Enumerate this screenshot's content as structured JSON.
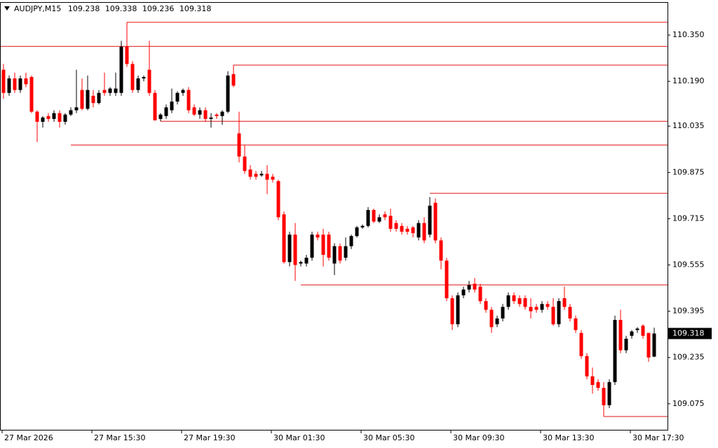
{
  "chart_data": {
    "type": "candlestick",
    "symbol": "AUDJPY,M15",
    "last_ohlc": [
      109.238,
      109.338,
      109.236,
      109.318
    ],
    "bull_color": "#000000",
    "bear_color": "#ff0000",
    "level_color": "#e01010",
    "ylim": [
      108.985,
      110.464
    ],
    "yticks": [
      {
        "value": 110.35,
        "label": "110.350"
      },
      {
        "value": 110.19,
        "label": "110.190"
      },
      110.035,
      109.875,
      109.715,
      109.555,
      109.395,
      109.235,
      109.075
    ],
    "xlabels": [
      {
        "index": 0,
        "label": "27 Mar 2026"
      },
      {
        "index": 16,
        "label": "27 Mar 15:30"
      },
      {
        "index": 32,
        "label": "27 Mar 19:30"
      },
      {
        "index": 48,
        "label": "30 Mar 01:30"
      },
      {
        "index": 64,
        "label": "30 Mar 05:30"
      },
      {
        "index": 80,
        "label": "30 Mar 09:30"
      },
      {
        "index": 96,
        "label": "30 Mar 13:30"
      },
      {
        "index": 112,
        "label": "30 Mar 17:30"
      }
    ],
    "levels": [
      {
        "value": 110.394,
        "from": 22
      },
      {
        "value": 110.311,
        "from": 0
      },
      {
        "value": 110.246,
        "from": 41
      },
      {
        "value": 110.052,
        "from": 28
      },
      {
        "value": 109.97,
        "from": 12
      },
      {
        "value": 109.803,
        "from": 76
      },
      {
        "value": 109.486,
        "from": 53
      },
      {
        "value": 109.031,
        "from": 107
      }
    ],
    "candles": [
      [
        110.23,
        110.25,
        110.13,
        110.15
      ],
      [
        110.15,
        110.21,
        110.14,
        110.2
      ],
      [
        110.2,
        110.22,
        110.15,
        110.16
      ],
      [
        110.16,
        110.21,
        110.15,
        110.2
      ],
      [
        110.2,
        110.22,
        110.17,
        110.18
      ],
      [
        110.205,
        110.21,
        110.08,
        110.085
      ],
      [
        110.085,
        110.09,
        109.98,
        110.05
      ],
      [
        110.05,
        110.07,
        110.03,
        110.065
      ],
      [
        110.07,
        110.08,
        110.05,
        110.06
      ],
      [
        110.06,
        110.09,
        110.05,
        110.08
      ],
      [
        110.08,
        110.09,
        110.03,
        110.05
      ],
      [
        110.05,
        110.08,
        110.04,
        110.075
      ],
      [
        110.075,
        110.1,
        110.07,
        110.09
      ],
      [
        110.09,
        110.23,
        110.08,
        110.1
      ],
      [
        110.16,
        110.2,
        110.09,
        110.095
      ],
      [
        110.095,
        110.21,
        110.09,
        110.16
      ],
      [
        110.14,
        110.16,
        110.1,
        110.115
      ],
      [
        110.115,
        110.16,
        110.11,
        110.15
      ],
      [
        110.16,
        110.22,
        110.14,
        110.15
      ],
      [
        110.15,
        110.17,
        110.14,
        110.165
      ],
      [
        110.15,
        110.22,
        110.14,
        110.165
      ],
      [
        110.15,
        110.33,
        110.14,
        110.31
      ],
      [
        110.31,
        110.394,
        110.24,
        110.25
      ],
      [
        110.25,
        110.26,
        110.15,
        110.16
      ],
      [
        110.16,
        110.21,
        110.15,
        110.2
      ],
      [
        110.2,
        110.21,
        110.19,
        110.205
      ],
      [
        110.23,
        110.33,
        110.14,
        110.15
      ],
      [
        110.15,
        110.16,
        110.055,
        110.055
      ],
      [
        110.06,
        110.08,
        110.052,
        110.075
      ],
      [
        110.07,
        110.11,
        110.06,
        110.1
      ],
      [
        110.09,
        110.165,
        110.08,
        110.12
      ],
      [
        110.12,
        110.155,
        110.11,
        110.15
      ],
      [
        110.15,
        110.165,
        110.14,
        110.16
      ],
      [
        110.16,
        110.17,
        110.08,
        110.09
      ],
      [
        110.1,
        110.11,
        110.07,
        110.075
      ],
      [
        110.075,
        110.1,
        110.06,
        110.09
      ],
      [
        110.09,
        110.1,
        110.05,
        110.06
      ],
      [
        110.06,
        110.08,
        110.03,
        110.065
      ],
      [
        110.075,
        110.08,
        110.06,
        110.07
      ],
      [
        110.07,
        110.09,
        110.04,
        110.085
      ],
      [
        110.085,
        110.225,
        110.08,
        110.21
      ],
      [
        110.215,
        110.246,
        110.17,
        110.175
      ],
      [
        110.01,
        110.085,
        109.91,
        109.93
      ],
      [
        109.93,
        109.97,
        109.87,
        109.88
      ],
      [
        109.885,
        109.9,
        109.85,
        109.86
      ],
      [
        109.87,
        109.88,
        109.85,
        109.86
      ],
      [
        109.865,
        109.88,
        109.86,
        109.87
      ],
      [
        109.87,
        109.9,
        109.8,
        109.85
      ],
      [
        109.86,
        109.87,
        109.84,
        109.85
      ],
      [
        109.845,
        109.85,
        109.71,
        109.72
      ],
      [
        109.73,
        109.74,
        109.56,
        109.565
      ],
      [
        109.565,
        109.67,
        109.55,
        109.66
      ],
      [
        109.66,
        109.7,
        109.5,
        109.555
      ],
      [
        109.56,
        109.57,
        109.55,
        109.565
      ],
      [
        109.56,
        109.59,
        109.55,
        109.58
      ],
      [
        109.58,
        109.67,
        109.57,
        109.66
      ],
      [
        109.66,
        109.67,
        109.64,
        109.65
      ],
      [
        109.66,
        109.68,
        109.55,
        109.59
      ],
      [
        109.66,
        109.67,
        109.57,
        109.58
      ],
      [
        109.56,
        109.63,
        109.52,
        109.62
      ],
      [
        109.62,
        109.63,
        109.56,
        109.57
      ],
      [
        109.58,
        109.65,
        109.57,
        109.62
      ],
      [
        109.62,
        109.66,
        109.61,
        109.655
      ],
      [
        109.655,
        109.69,
        109.65,
        109.685
      ],
      [
        109.685,
        109.695,
        109.68,
        109.69
      ],
      [
        109.69,
        109.755,
        109.685,
        109.745
      ],
      [
        109.745,
        109.75,
        109.7,
        109.705
      ],
      [
        109.705,
        109.73,
        109.7,
        109.72
      ],
      [
        109.73,
        109.74,
        109.71,
        109.72
      ],
      [
        109.725,
        109.75,
        109.67,
        109.68
      ],
      [
        109.7,
        109.71,
        109.67,
        109.68
      ],
      [
        109.69,
        109.7,
        109.66,
        109.67
      ],
      [
        109.68,
        109.69,
        109.66,
        109.67
      ],
      [
        109.685,
        109.69,
        109.65,
        109.665
      ],
      [
        109.65,
        109.71,
        109.64,
        109.7
      ],
      [
        109.7,
        109.72,
        109.63,
        109.64
      ],
      [
        109.66,
        109.79,
        109.65,
        109.76
      ],
      [
        109.77,
        109.785,
        109.63,
        109.64
      ],
      [
        109.64,
        109.65,
        109.54,
        109.57
      ],
      [
        109.57,
        109.58,
        109.43,
        109.44
      ],
      [
        109.44,
        109.45,
        109.33,
        109.35
      ],
      [
        109.35,
        109.46,
        109.34,
        109.45
      ],
      [
        109.45,
        109.48,
        109.44,
        109.47
      ],
      [
        109.47,
        109.5,
        109.46,
        109.485
      ],
      [
        109.49,
        109.51,
        109.46,
        109.47
      ],
      [
        109.48,
        109.49,
        109.42,
        109.43
      ],
      [
        109.43,
        109.44,
        109.39,
        109.4
      ],
      [
        109.4,
        109.41,
        109.32,
        109.34
      ],
      [
        109.35,
        109.38,
        109.34,
        109.37
      ],
      [
        109.37,
        109.42,
        109.36,
        109.41
      ],
      [
        109.41,
        109.46,
        109.4,
        109.45
      ],
      [
        109.45,
        109.46,
        109.42,
        109.43
      ],
      [
        109.44,
        109.45,
        109.41,
        109.42
      ],
      [
        109.44,
        109.45,
        109.4,
        109.41
      ],
      [
        109.41,
        109.44,
        109.37,
        109.395
      ],
      [
        109.41,
        109.42,
        109.39,
        109.4
      ],
      [
        109.4,
        109.43,
        109.39,
        109.42
      ],
      [
        109.42,
        109.43,
        109.4,
        109.41
      ],
      [
        109.41,
        109.44,
        109.345,
        109.35
      ],
      [
        109.35,
        109.44,
        109.34,
        109.43
      ],
      [
        109.44,
        109.48,
        109.4,
        109.41
      ],
      [
        109.41,
        109.42,
        109.36,
        109.37
      ],
      [
        109.37,
        109.38,
        109.32,
        109.33
      ],
      [
        109.32,
        109.33,
        109.23,
        109.24
      ],
      [
        109.24,
        109.25,
        109.16,
        109.17
      ],
      [
        109.17,
        109.2,
        109.11,
        109.14
      ],
      [
        109.15,
        109.16,
        109.12,
        109.13
      ],
      [
        109.13,
        109.15,
        109.031,
        109.07
      ],
      [
        109.07,
        109.16,
        109.06,
        109.15
      ],
      [
        109.15,
        109.38,
        109.14,
        109.365
      ],
      [
        109.365,
        109.4,
        109.25,
        109.26
      ],
      [
        109.26,
        109.31,
        109.25,
        109.3
      ],
      [
        109.31,
        109.33,
        109.3,
        109.325
      ],
      [
        109.33,
        109.34,
        109.32,
        109.335
      ],
      [
        109.345,
        109.35,
        109.3,
        109.31
      ],
      [
        109.32,
        109.32,
        109.22,
        109.235
      ],
      [
        109.238,
        109.338,
        109.236,
        109.318
      ]
    ]
  }
}
